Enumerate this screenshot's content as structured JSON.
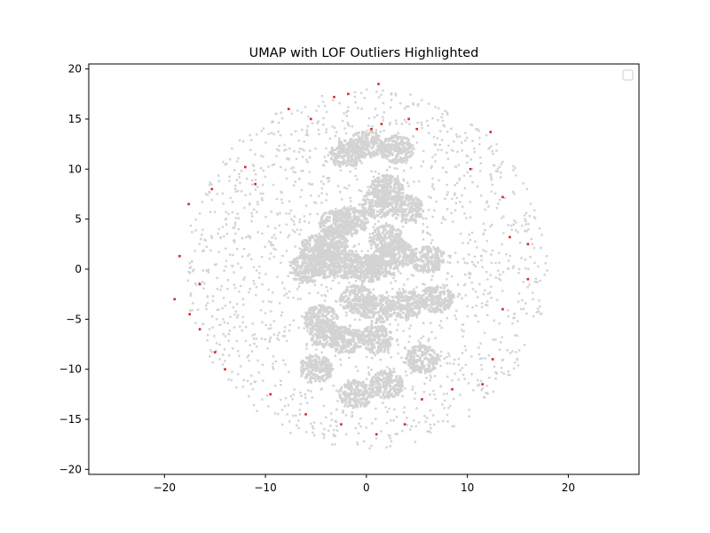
{
  "chart_data": {
    "type": "scatter",
    "title": "UMAP with LOF Outliers Highlighted",
    "xlabel": "",
    "ylabel": "",
    "xlim": [
      -27.5,
      27.0
    ],
    "ylim": [
      -20.5,
      20.5
    ],
    "xticks": [
      -20,
      -10,
      0,
      10,
      20
    ],
    "yticks": [
      -20,
      -15,
      -10,
      -5,
      0,
      5,
      10,
      15,
      20
    ],
    "grid": false,
    "legend": {
      "placement": "top-right",
      "entries": []
    },
    "series": [
      {
        "role": "inliers",
        "color": "#d3d3d3",
        "blobs": [
          {
            "x": -3.0,
            "y": 4.5
          },
          {
            "x": -1.5,
            "y": 4.8
          },
          {
            "x": -3.5,
            "y": 2.5
          },
          {
            "x": -5.0,
            "y": 2.0
          },
          {
            "x": -6.0,
            "y": 0.0
          },
          {
            "x": -4.0,
            "y": 0.5
          },
          {
            "x": -2.0,
            "y": 0.5
          },
          {
            "x": 0.0,
            "y": 0.0
          },
          {
            "x": 1.5,
            "y": 0.5
          },
          {
            "x": 3.0,
            "y": 1.5
          },
          {
            "x": 2.0,
            "y": 3.0
          },
          {
            "x": 4.0,
            "y": 6.0
          },
          {
            "x": 1.0,
            "y": 6.5
          },
          {
            "x": 2.0,
            "y": 8.0
          },
          {
            "x": 6.0,
            "y": 1.0
          },
          {
            "x": 7.0,
            "y": -3.0
          },
          {
            "x": 4.0,
            "y": -3.5
          },
          {
            "x": 1.0,
            "y": -4.0
          },
          {
            "x": -1.0,
            "y": -3.0
          },
          {
            "x": -4.5,
            "y": -5.0
          },
          {
            "x": -4.0,
            "y": -6.5
          },
          {
            "x": -2.0,
            "y": -7.0
          },
          {
            "x": 1.0,
            "y": -7.0
          },
          {
            "x": 5.5,
            "y": -9.0
          },
          {
            "x": 2.0,
            "y": -11.5
          },
          {
            "x": -1.0,
            "y": -12.5
          },
          {
            "x": -5.0,
            "y": -10.0
          },
          {
            "x": 3.0,
            "y": 12.0
          },
          {
            "x": 0.0,
            "y": 12.5
          },
          {
            "x": -2.0,
            "y": 11.5
          }
        ],
        "scatter": {
          "center": [
            0.0,
            0.0
          ],
          "radius_x": 18.0,
          "radius_y": 18.0
        }
      },
      {
        "role": "outliers",
        "color": "#d62728",
        "points": [
          {
            "x": 1.2,
            "y": 18.5
          },
          {
            "x": -1.8,
            "y": 17.5
          },
          {
            "x": -3.2,
            "y": 17.2
          },
          {
            "x": -7.7,
            "y": 16.0
          },
          {
            "x": 1.5,
            "y": 14.5
          },
          {
            "x": 4.2,
            "y": 15.0
          },
          {
            "x": 5.0,
            "y": 14.0
          },
          {
            "x": 12.3,
            "y": 13.7
          },
          {
            "x": -12.0,
            "y": 10.2
          },
          {
            "x": -11.0,
            "y": 8.5
          },
          {
            "x": -15.3,
            "y": 8.0
          },
          {
            "x": -17.6,
            "y": 6.5
          },
          {
            "x": 10.3,
            "y": 10.0
          },
          {
            "x": 13.5,
            "y": 7.2
          },
          {
            "x": 14.2,
            "y": 3.2
          },
          {
            "x": 16.0,
            "y": 2.5
          },
          {
            "x": -18.5,
            "y": 1.3
          },
          {
            "x": -16.5,
            "y": -1.5
          },
          {
            "x": 16.0,
            "y": -1.0
          },
          {
            "x": -19.0,
            "y": -3.0
          },
          {
            "x": -17.5,
            "y": -4.5
          },
          {
            "x": 13.5,
            "y": -4.0
          },
          {
            "x": -16.5,
            "y": -6.0
          },
          {
            "x": -15.0,
            "y": -8.3
          },
          {
            "x": -14.0,
            "y": -10.0
          },
          {
            "x": 12.5,
            "y": -9.0
          },
          {
            "x": 11.5,
            "y": -11.5
          },
          {
            "x": -9.5,
            "y": -12.5
          },
          {
            "x": 8.5,
            "y": -12.0
          },
          {
            "x": 5.5,
            "y": -13.0
          },
          {
            "x": -6.0,
            "y": -14.5
          },
          {
            "x": -2.5,
            "y": -15.5
          },
          {
            "x": 1.0,
            "y": -16.5
          },
          {
            "x": 3.8,
            "y": -15.5
          },
          {
            "x": 0.5,
            "y": 14.0
          },
          {
            "x": -5.5,
            "y": 15.0
          }
        ]
      }
    ]
  }
}
